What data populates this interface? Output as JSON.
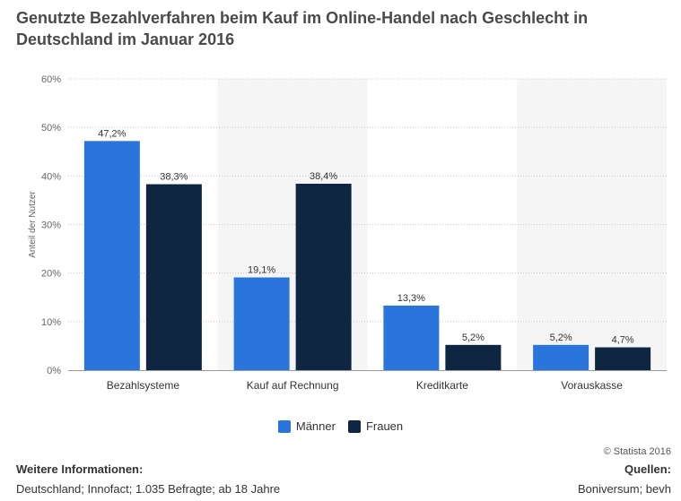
{
  "title": "Genutzte Bezahlverfahren beim Kauf im Online-Handel nach Geschlecht in Deutschland im Januar 2016",
  "copyright": "© Statista 2016",
  "info": {
    "title": "Weitere Informationen:",
    "text": "Deutschland; Innofact; 1.035 Befragte; ab 18 Jahre"
  },
  "sources": {
    "title": "Quellen:",
    "text": "Boniversum; bevh"
  },
  "colors": {
    "maenner": "#2a75dc",
    "frauen": "#0e2641",
    "band": "#f5f5f5",
    "grid": "#c8c8c8"
  },
  "chart_data": {
    "type": "bar",
    "title": "Genutzte Bezahlverfahren beim Kauf im Online-Handel nach Geschlecht in Deutschland im Januar 2016",
    "xlabel": "",
    "ylabel": "Anteil der Nutzer",
    "ylim": [
      0,
      60
    ],
    "yticks": [
      "0%",
      "10%",
      "20%",
      "30%",
      "40%",
      "50%",
      "60%"
    ],
    "categories": [
      "Bezahlsysteme",
      "Kauf auf Rechnung",
      "Kreditkarte",
      "Vorauskasse"
    ],
    "series": [
      {
        "name": "Männer",
        "values": [
          47.2,
          19.1,
          13.3,
          5.2
        ],
        "labels": [
          "47,2%",
          "19,1%",
          "13,3%",
          "5,2%"
        ]
      },
      {
        "name": "Frauen",
        "values": [
          38.3,
          38.4,
          5.2,
          4.7
        ],
        "labels": [
          "38,3%",
          "38,4%",
          "5,2%",
          "4,7%"
        ]
      }
    ],
    "grid": true,
    "legend": "bottom-center"
  }
}
